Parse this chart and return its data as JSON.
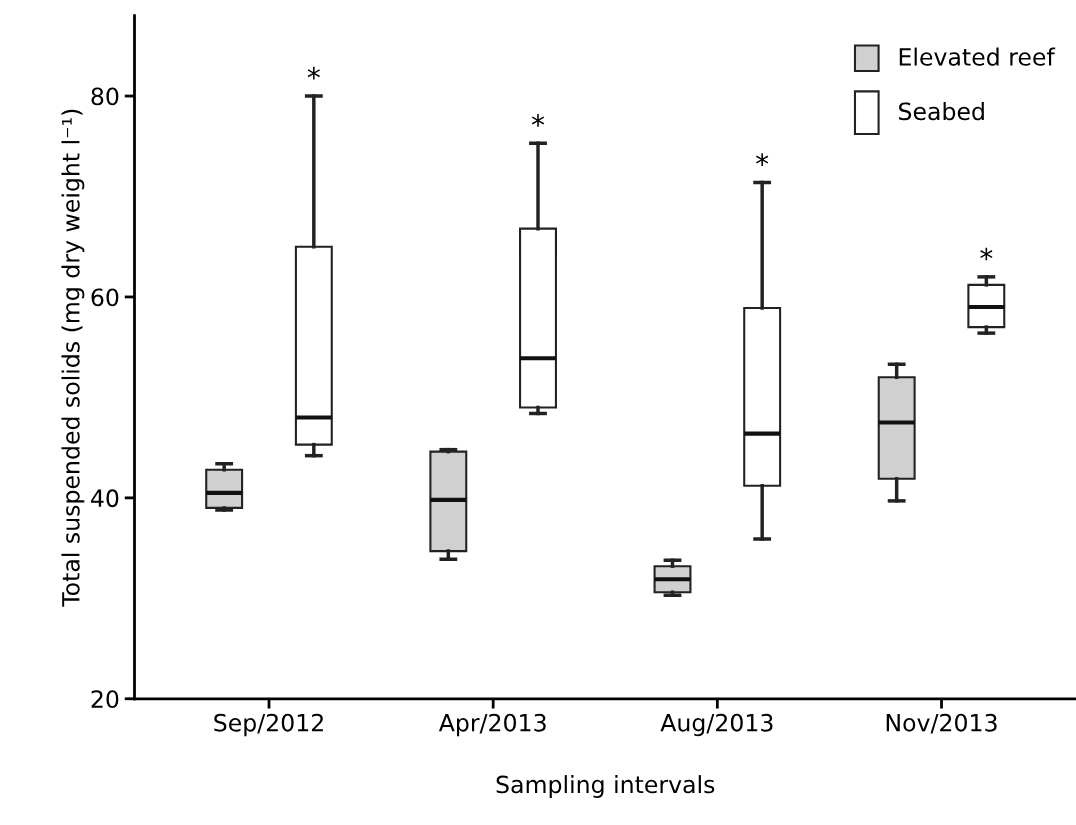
{
  "chart_data": {
    "type": "box",
    "xlabel": "Sampling intervals",
    "ylabel": "Total suspended solids (mg dry weight l⁻¹)",
    "categories": [
      "Sep/2012",
      "Apr/2013",
      "Aug/2013",
      "Nov/2013"
    ],
    "series": [
      {
        "name": "Elevated reef",
        "color": "#d0d0d0",
        "boxes": [
          {
            "low": 38.8,
            "q1": 39,
            "median": 40.5,
            "q3": 42.8,
            "high": 43.4
          },
          {
            "low": 33.9,
            "q1": 34.7,
            "median": 39.8,
            "q3": 44.6,
            "high": 44.8
          },
          {
            "low": 30.3,
            "q1": 30.6,
            "median": 31.9,
            "q3": 33.2,
            "high": 33.8
          },
          {
            "low": 39.7,
            "q1": 41.9,
            "median": 47.5,
            "q3": 52.0,
            "high": 53.3
          }
        ]
      },
      {
        "name": "Seabed",
        "color": "#ffffff",
        "boxes": [
          {
            "low": 44.2,
            "q1": 45.3,
            "median": 48,
            "q3": 65,
            "high": 80
          },
          {
            "low": 48.4,
            "q1": 49.0,
            "median": 53.9,
            "q3": 66.8,
            "high": 75.3
          },
          {
            "low": 35.9,
            "q1": 41.2,
            "median": 46.4,
            "q3": 58.9,
            "high": 71.4
          },
          {
            "low": 56.4,
            "q1": 57.0,
            "median": 59.0,
            "q3": 61.2,
            "high": 62.0
          }
        ]
      }
    ],
    "annotations": [
      "*",
      "*",
      "*",
      "*"
    ],
    "ylim": [
      20,
      88
    ],
    "yticks": [
      20,
      40,
      60,
      80
    ],
    "grid": false,
    "legend": "top right"
  }
}
